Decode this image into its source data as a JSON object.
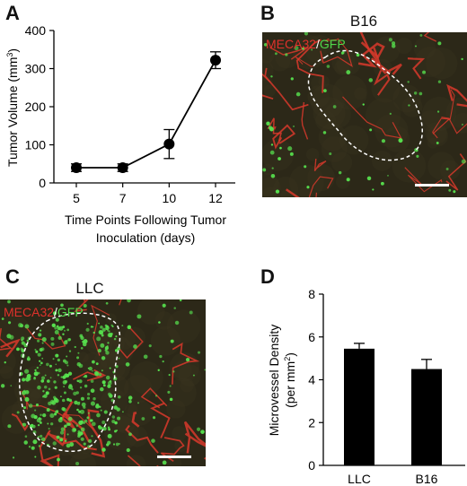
{
  "panels": {
    "A": {
      "letter": "A"
    },
    "B": {
      "letter": "B",
      "title": "B16",
      "stain_red": "MECA32",
      "slash": "/",
      "stain_green": "GFP"
    },
    "C": {
      "letter": "C",
      "title": "LLC",
      "stain_red": "MECA32",
      "slash": "/",
      "stain_green": "GFP"
    },
    "D": {
      "letter": "D"
    }
  },
  "colors": {
    "vessel_red": "#d8382c",
    "gfp_green": "#57e14e",
    "tissue_bg": "#2c2818",
    "bar_fill": "#000000"
  },
  "chart_data": [
    {
      "panel": "A",
      "type": "line",
      "x": [
        "5",
        "7",
        "10",
        "12"
      ],
      "series": [
        {
          "values": [
            40,
            40,
            102,
            322
          ],
          "error": [
            10,
            10,
            38,
            22
          ]
        }
      ],
      "ylabel": "Tumor Volume (mm³)",
      "xlabel": "Time Points Following Tumor Inoculation (days)",
      "xlabel_line1": "Time Points Following Tumor",
      "xlabel_line2": "Inoculation (days)",
      "ylabel_main": "Tumor Volume (mm",
      "ylabel_sup": "3",
      "ylabel_end": ")",
      "yticks": [
        "0",
        "100",
        "200",
        "300",
        "400"
      ],
      "ylim": [
        0,
        400
      ],
      "grid": false
    },
    {
      "panel": "D",
      "type": "bar",
      "categories": [
        "LLC",
        "B16"
      ],
      "values": [
        5.45,
        4.5
      ],
      "error": [
        0.25,
        0.45
      ],
      "ylabel": "Microvessel Density (per mm²)",
      "ylabel_line1": "Microvessel Density",
      "ylabel_line2_main": "(per mm",
      "ylabel_line2_sup": "2",
      "ylabel_line2_end": ")",
      "yticks": [
        "0",
        "2",
        "4",
        "6",
        "8"
      ],
      "ylim": [
        0,
        8
      ],
      "grid": false
    }
  ]
}
